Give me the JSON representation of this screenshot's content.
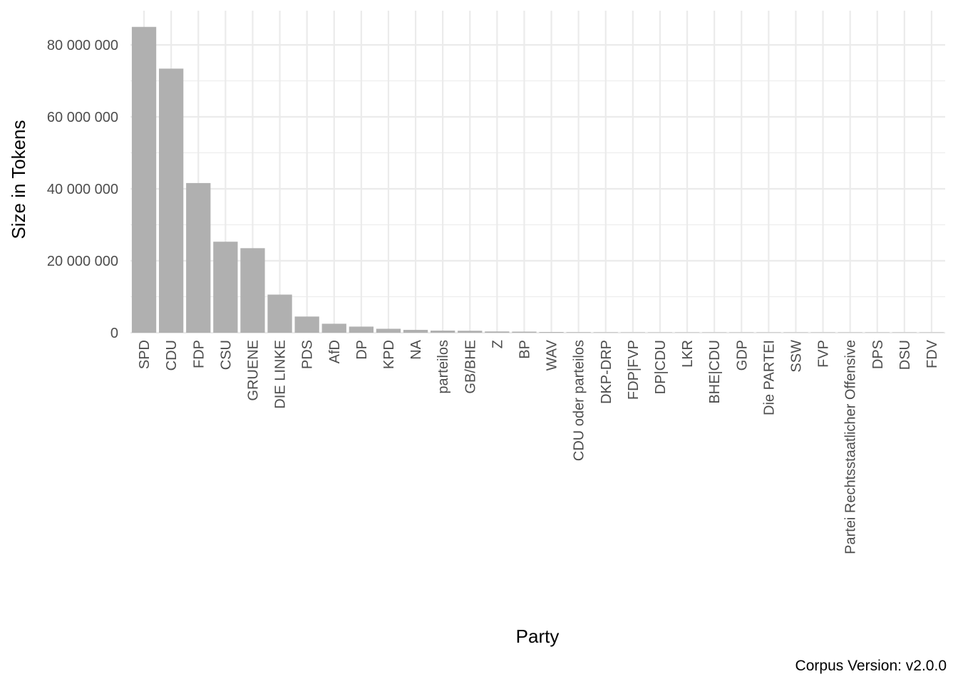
{
  "chart_data": {
    "type": "bar",
    "title": "",
    "xlabel": "Party",
    "ylabel": "Size in Tokens",
    "caption": "Corpus Version: v2.0.0",
    "ylim": [
      0,
      85000000
    ],
    "yticks": [
      0,
      20000000,
      40000000,
      60000000,
      80000000
    ],
    "ytick_labels": [
      "0",
      "20 000 000",
      "40 000 000",
      "60 000 000",
      "80 000 000"
    ],
    "grid": true,
    "legend": "none",
    "bar_color": "#b0b0b0",
    "grid_color": "#ebebeb",
    "categories": [
      "SPD",
      "CDU",
      "FDP",
      "CSU",
      "GRUENE",
      "DIE LINKE",
      "PDS",
      "AfD",
      "DP",
      "KPD",
      "NA",
      "parteilos",
      "GB/BHE",
      "Z",
      "BP",
      "WAV",
      "CDU oder parteilos",
      "DKP-DRP",
      "FDP|FVP",
      "DP|CDU",
      "LKR",
      "BHE|CDU",
      "GDP",
      "Die PARTEI",
      "SSW",
      "FVP",
      "Partei Rechtsstaatlicher Offensive",
      "DPS",
      "DSU",
      "FDV"
    ],
    "values": [
      85000000,
      73400000,
      41600000,
      25300000,
      23500000,
      10600000,
      4500000,
      2500000,
      1700000,
      1100000,
      800000,
      600000,
      550000,
      350000,
      300000,
      200000,
      150000,
      120000,
      100000,
      80000,
      60000,
      50000,
      40000,
      30000,
      25000,
      20000,
      15000,
      10000,
      8000,
      5000
    ]
  }
}
